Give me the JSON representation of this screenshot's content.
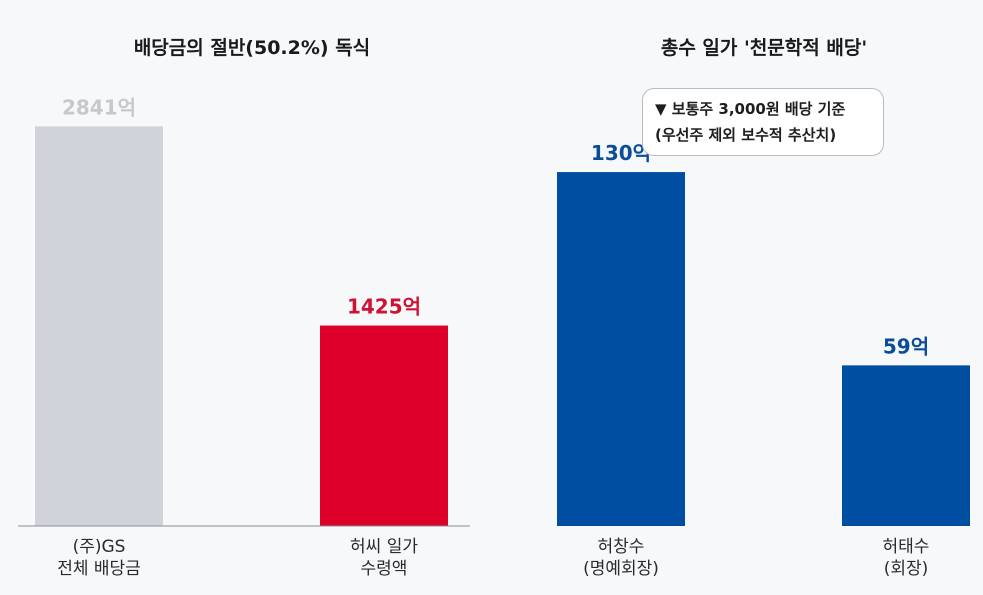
{
  "chart_data": [
    {
      "type": "bar",
      "title": "배당금의 절반(50.2%) 독식",
      "categories": [
        "(주)GS\n전체 배당금",
        "허씨 일가\n수령액"
      ],
      "values": [
        2841,
        1425
      ],
      "value_labels": [
        "2841억",
        "1425억"
      ],
      "colors": [
        "#d0d4da",
        "#dd002b"
      ],
      "label_colors": [
        "#c5c9ce",
        "#cf1233"
      ],
      "ylim": [
        0,
        3000
      ],
      "unit": "억",
      "grid": false,
      "baseline": true
    },
    {
      "type": "bar",
      "title": "총수 일가 '천문학적 배당'",
      "categories": [
        "허창수\n(명예회장)",
        "허태수\n(회장)"
      ],
      "values": [
        130,
        59
      ],
      "value_labels": [
        "130억",
        "59억"
      ],
      "colors": [
        "#004ea2",
        "#004ea2"
      ],
      "label_colors": [
        "#0a4d9a",
        "#0a4d9a"
      ],
      "ylim": [
        0,
        155
      ],
      "unit": "억",
      "grid": false,
      "baseline": false,
      "annotation": [
        "▼ 보통주 3,000원 배당 기준",
        "(우선주 제외 보수적 추산치)"
      ]
    }
  ]
}
